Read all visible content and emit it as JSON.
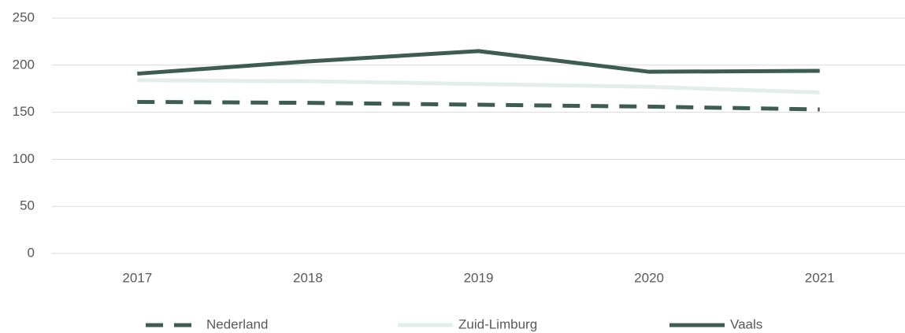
{
  "chart_data": {
    "type": "line",
    "categories": [
      "2017",
      "2018",
      "2019",
      "2020",
      "2021"
    ],
    "series": [
      {
        "name": "Nederland",
        "color": "#3d5c53",
        "dashed": true,
        "values": [
          161,
          160,
          158,
          156,
          153
        ]
      },
      {
        "name": "Zuid-Limburg",
        "color": "#e3eeea",
        "dashed": false,
        "values": [
          184,
          183,
          180,
          177,
          171
        ]
      },
      {
        "name": "Vaals",
        "color": "#3d5c53",
        "dashed": false,
        "values": [
          191,
          204,
          215,
          193,
          194
        ]
      }
    ],
    "ylim": [
      0,
      250
    ],
    "yticks": [
      0,
      50,
      100,
      150,
      200,
      250
    ],
    "grid": true,
    "legend": "bottom"
  }
}
